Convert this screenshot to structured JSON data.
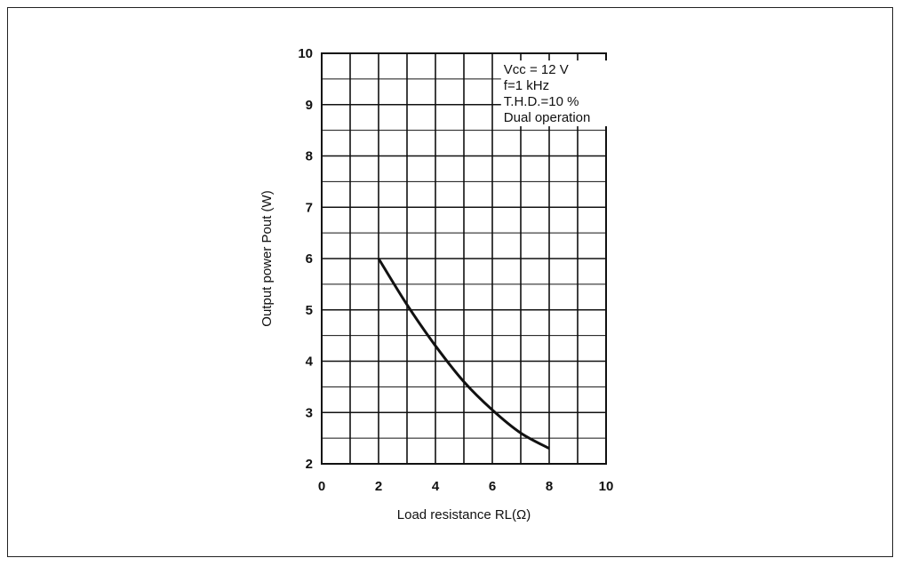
{
  "chart_data": {
    "type": "line",
    "title": "",
    "xlabel": "Load resistance RL(Ω)",
    "ylabel": "Output power Pout (W)",
    "xlim": [
      0,
      10
    ],
    "ylim": [
      2,
      10
    ],
    "x_ticks": [
      "0",
      "2",
      "4",
      "6",
      "8",
      "10"
    ],
    "y_ticks": [
      "2",
      "3",
      "4",
      "5",
      "6",
      "7",
      "8",
      "9",
      "10"
    ],
    "grid": true,
    "annotations": [
      "Vcc = 12 V",
      "f=1 kHz",
      "T.H.D.=10 %",
      "Dual operation"
    ],
    "series": [
      {
        "x": [
          2,
          3,
          4,
          5,
          6,
          7,
          8
        ],
        "y": [
          6.0,
          5.1,
          4.3,
          3.6,
          3.05,
          2.6,
          2.3
        ]
      }
    ]
  }
}
